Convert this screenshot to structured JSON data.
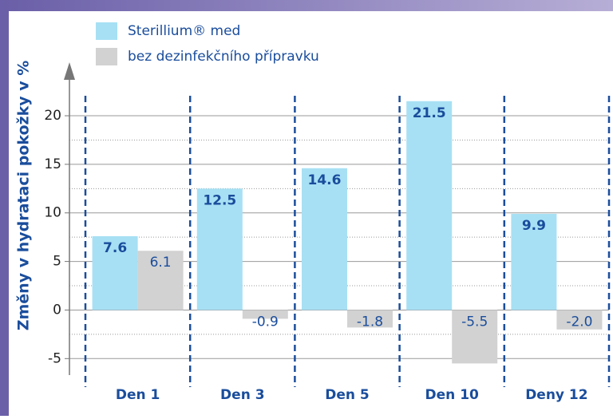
{
  "chart_data": {
    "type": "bar",
    "y_label": "Změny v hydrataci pokožky v %",
    "categories": [
      "Den 1",
      "Den 3",
      "Den 5",
      "Den 10",
      "Deny 12"
    ],
    "series": [
      {
        "name": "Sterillium® med",
        "color": "#a7e0f4",
        "values": [
          7.6,
          12.5,
          14.6,
          21.5,
          9.9
        ]
      },
      {
        "name": "bez dezinfekčního přípravku",
        "color": "#d2d2d2",
        "values": [
          6.1,
          -0.9,
          -1.8,
          -5.5,
          -2.0
        ],
        "value_labels": [
          "6.1",
          "-0.9",
          "-1.8",
          "-5.5",
          "-2.0"
        ]
      }
    ],
    "ylim": [
      -6.7,
      23.7
    ],
    "yticks": [
      -5,
      0,
      5,
      10,
      15,
      20
    ],
    "grid": true
  }
}
